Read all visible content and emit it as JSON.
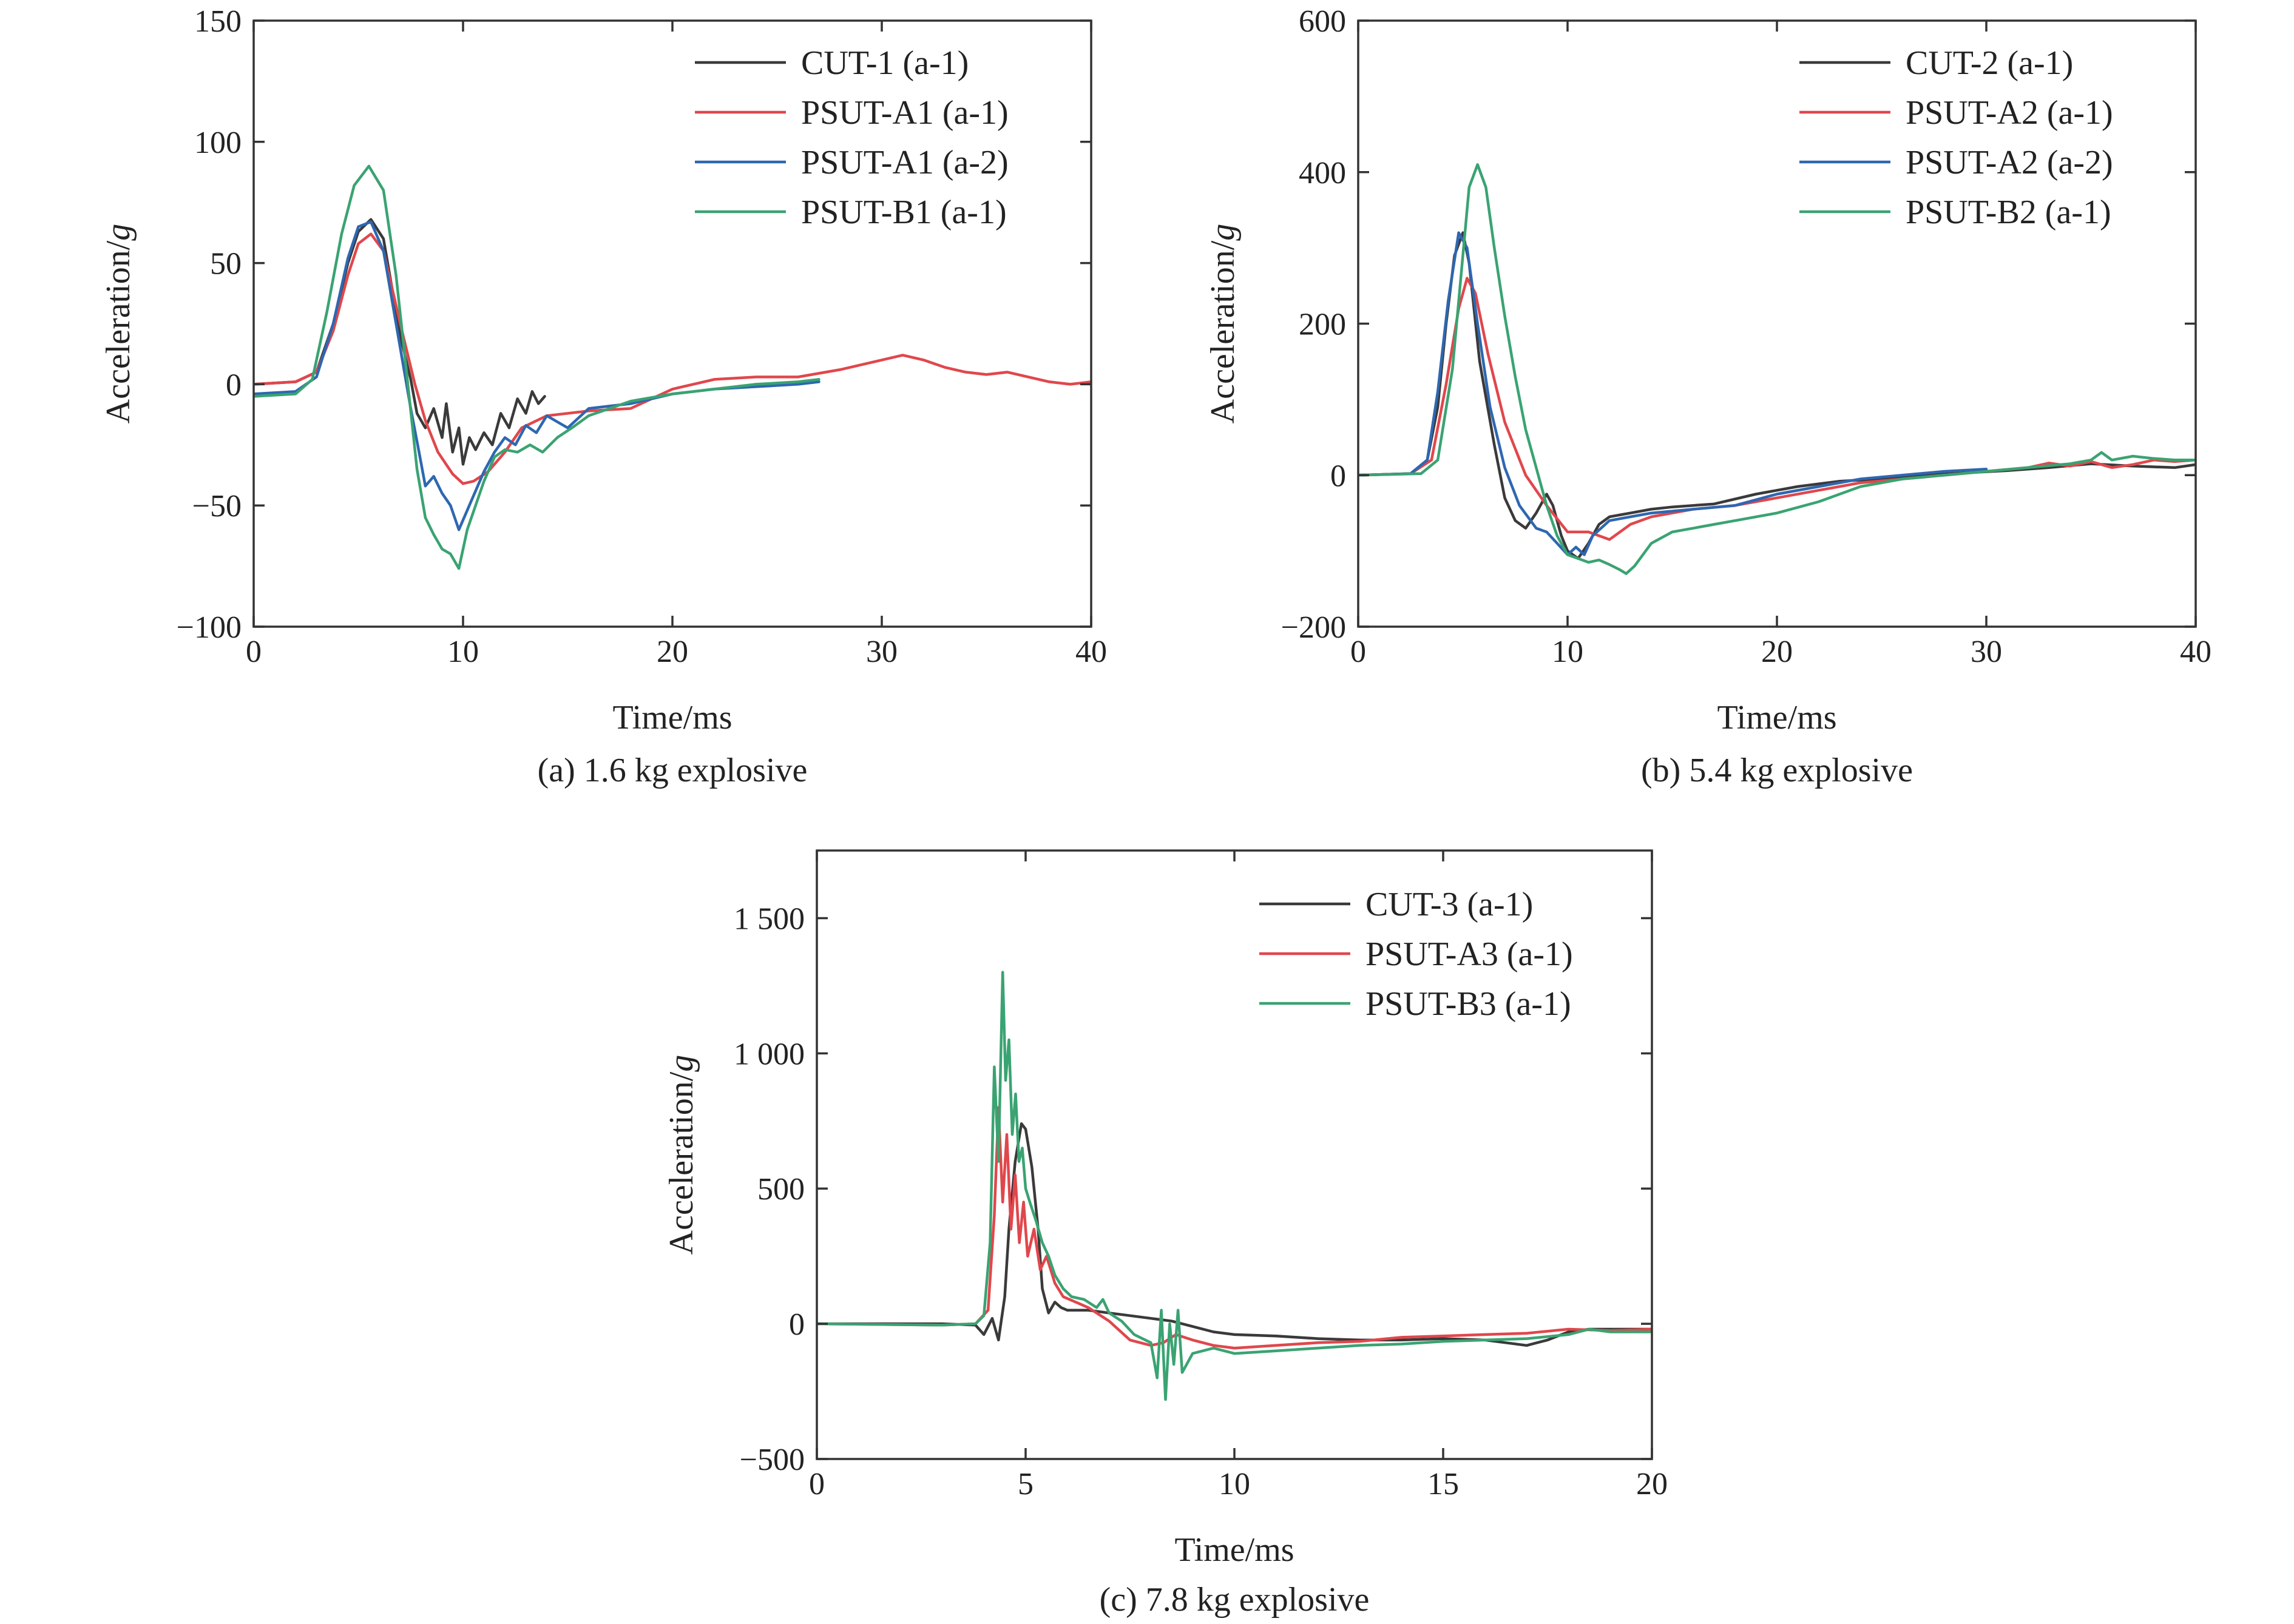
{
  "colors": {
    "cut": "#3a3a3a",
    "psut_a_1": "#e0474c",
    "psut_a_2": "#2e67b1",
    "psut_b_1": "#3aa372"
  },
  "chart_data": [
    {
      "type": "line",
      "id": "a",
      "caption": "(a) 1.6 kg explosive",
      "xlabel": "Time/ms",
      "ylabel": "Acceleration/",
      "ylabel_italic": "g",
      "xlim": [
        0,
        40
      ],
      "ylim": [
        -100,
        150
      ],
      "xticks": [
        0,
        10,
        20,
        30,
        40
      ],
      "yticks": [
        -100,
        -50,
        0,
        50,
        100,
        150
      ],
      "xtick_labels": [
        "0",
        "10",
        "20",
        "30",
        "40"
      ],
      "ytick_labels": [
        "−100",
        "−50",
        "0",
        "50",
        "100",
        "150"
      ],
      "legend_position": "top-right",
      "grid": false,
      "series": [
        {
          "name": "CUT-1 (a-1)",
          "color": "#3a3a3a",
          "x": [
            0,
            2,
            3,
            3.8,
            4.5,
            5,
            5.6,
            6.2,
            7,
            7.5,
            7.8,
            8.2,
            8.6,
            9,
            9.2,
            9.5,
            9.8,
            10,
            10.3,
            10.6,
            11,
            11.4,
            11.8,
            12.2,
            12.6,
            13,
            13.3,
            13.6,
            13.9
          ],
          "y": [
            0,
            1,
            5,
            25,
            50,
            63,
            68,
            60,
            20,
            2,
            -12,
            -18,
            -10,
            -22,
            -8,
            -28,
            -18,
            -33,
            -22,
            -27,
            -20,
            -25,
            -12,
            -18,
            -6,
            -12,
            -3,
            -8,
            -5
          ]
        },
        {
          "name": "PSUT-A1 (a-1)",
          "color": "#e0474c",
          "x": [
            0,
            2,
            3,
            3.8,
            4.5,
            5,
            5.6,
            6.2,
            7,
            7.7,
            8.2,
            8.8,
            9.5,
            10,
            10.5,
            11.2,
            12,
            12.8,
            14,
            16,
            18,
            20,
            22,
            24,
            26,
            28,
            29,
            30,
            31,
            32,
            33,
            34,
            35,
            36,
            37,
            38,
            39,
            40
          ],
          "y": [
            0,
            1,
            5,
            22,
            45,
            58,
            62,
            55,
            25,
            0,
            -15,
            -28,
            -37,
            -41,
            -40,
            -36,
            -28,
            -18,
            -13,
            -11,
            -10,
            -2,
            2,
            3,
            3,
            6,
            8,
            10,
            12,
            10,
            7,
            5,
            4,
            5,
            3,
            1,
            0,
            1
          ]
        },
        {
          "name": "PSUT-A1 (a-2)",
          "color": "#2e67b1",
          "x": [
            0,
            2,
            3,
            3.8,
            4.5,
            5,
            5.6,
            6.2,
            7,
            7.5,
            7.9,
            8.2,
            8.6,
            9,
            9.4,
            9.8,
            10.2,
            10.6,
            11,
            11.5,
            12,
            12.5,
            13,
            13.5,
            14,
            15,
            16,
            18,
            20,
            22,
            24,
            26,
            27
          ],
          "y": [
            -4,
            -3,
            3,
            25,
            52,
            65,
            67,
            55,
            15,
            -10,
            -28,
            -42,
            -38,
            -45,
            -50,
            -60,
            -52,
            -44,
            -36,
            -28,
            -22,
            -25,
            -17,
            -20,
            -13,
            -18,
            -10,
            -8,
            -4,
            -2,
            -1,
            0,
            1
          ]
        },
        {
          "name": "PSUT-B1 (a-1)",
          "color": "#3aa372",
          "x": [
            0,
            2,
            2.8,
            3.5,
            4.2,
            4.8,
            5.5,
            6.2,
            6.8,
            7.3,
            7.8,
            8.2,
            8.6,
            9,
            9.4,
            9.8,
            10.2,
            10.6,
            11,
            11.5,
            12,
            12.6,
            13.2,
            13.8,
            14.5,
            15.2,
            16,
            17,
            18,
            20,
            22,
            24,
            26,
            27
          ],
          "y": [
            -5,
            -4,
            2,
            30,
            62,
            82,
            90,
            80,
            45,
            5,
            -35,
            -55,
            -62,
            -68,
            -70,
            -76,
            -60,
            -50,
            -40,
            -30,
            -27,
            -28,
            -25,
            -28,
            -22,
            -18,
            -13,
            -10,
            -7,
            -4,
            -2,
            0,
            1,
            2
          ]
        }
      ]
    },
    {
      "type": "line",
      "id": "b",
      "caption": "(b) 5.4 kg explosive",
      "xlabel": "Time/ms",
      "ylabel": "Acceleration/",
      "ylabel_italic": "g",
      "xlim": [
        0,
        40
      ],
      "ylim": [
        -200,
        600
      ],
      "xticks": [
        0,
        10,
        20,
        30,
        40
      ],
      "yticks": [
        -200,
        0,
        200,
        400,
        600
      ],
      "xtick_labels": [
        "0",
        "10",
        "20",
        "30",
        "40"
      ],
      "ytick_labels": [
        "−200",
        "0",
        "200",
        "400",
        "600"
      ],
      "legend_position": "top-right",
      "grid": false,
      "series": [
        {
          "name": "CUT-2 (a-1)",
          "color": "#3a3a3a",
          "x": [
            0,
            2.5,
            3.3,
            3.8,
            4.2,
            4.6,
            5,
            5.3,
            5.8,
            6.5,
            7,
            7.5,
            8,
            8.5,
            9,
            9.3,
            9.7,
            10,
            10.5,
            11,
            11.5,
            12,
            13,
            14,
            15,
            17,
            19,
            21,
            23,
            25,
            27,
            29,
            31,
            33,
            35,
            37,
            39,
            40
          ],
          "y": [
            0,
            2,
            20,
            90,
            200,
            290,
            320,
            280,
            150,
            40,
            -30,
            -60,
            -70,
            -50,
            -25,
            -40,
            -80,
            -100,
            -110,
            -90,
            -65,
            -55,
            -50,
            -45,
            -42,
            -38,
            -25,
            -15,
            -8,
            -5,
            0,
            3,
            6,
            10,
            15,
            12,
            10,
            14
          ]
        },
        {
          "name": "PSUT-A2 (a-1)",
          "color": "#e0474c",
          "x": [
            0,
            2.5,
            3.5,
            4.2,
            4.8,
            5.2,
            5.6,
            6.2,
            7,
            8,
            9,
            10,
            11,
            11.5,
            12,
            12.5,
            13,
            14,
            16,
            18,
            20,
            22,
            24,
            26,
            28,
            30,
            32,
            33,
            34,
            35,
            36,
            37,
            38,
            39,
            40
          ],
          "y": [
            0,
            2,
            20,
            120,
            220,
            260,
            240,
            160,
            70,
            0,
            -40,
            -75,
            -75,
            -80,
            -85,
            -75,
            -65,
            -55,
            -45,
            -40,
            -30,
            -20,
            -10,
            -5,
            0,
            5,
            10,
            16,
            12,
            18,
            10,
            14,
            20,
            18,
            20
          ]
        },
        {
          "name": "PSUT-A2 (a-2)",
          "color": "#2e67b1",
          "x": [
            0,
            2.5,
            3.3,
            3.8,
            4.3,
            4.8,
            5.2,
            5.7,
            6.3,
            7,
            7.7,
            8.5,
            9,
            9.5,
            10,
            10.4,
            10.8,
            11.2,
            11.6,
            12,
            13,
            14,
            16,
            18,
            20,
            22,
            24,
            26,
            28,
            30
          ],
          "y": [
            0,
            2,
            20,
            110,
            230,
            320,
            300,
            200,
            90,
            10,
            -40,
            -70,
            -75,
            -90,
            -105,
            -95,
            -105,
            -80,
            -70,
            -60,
            -55,
            -50,
            -45,
            -40,
            -25,
            -15,
            -5,
            0,
            5,
            8
          ]
        },
        {
          "name": "PSUT-B2 (a-1)",
          "color": "#3aa372",
          "x": [
            0,
            3,
            3.8,
            4.5,
            5,
            5.3,
            5.7,
            6.1,
            6.5,
            7,
            7.5,
            8,
            8.5,
            9,
            9.5,
            10,
            11,
            11.5,
            12,
            12.5,
            12.8,
            13.2,
            14,
            15,
            16,
            17,
            18,
            20,
            22,
            24,
            26,
            28,
            30,
            32,
            34,
            35,
            35.5,
            36,
            37,
            38,
            39,
            40
          ],
          "y": [
            0,
            2,
            20,
            140,
            290,
            380,
            410,
            380,
            300,
            210,
            130,
            60,
            10,
            -40,
            -80,
            -105,
            -115,
            -112,
            -118,
            -125,
            -130,
            -120,
            -90,
            -75,
            -70,
            -65,
            -60,
            -50,
            -35,
            -15,
            -5,
            0,
            5,
            10,
            15,
            20,
            30,
            20,
            25,
            22,
            20,
            20
          ]
        }
      ]
    },
    {
      "type": "line",
      "id": "c",
      "caption": "(c) 7.8 kg explosive",
      "xlabel": "Time/ms",
      "ylabel": "Acceleration/",
      "ylabel_italic": "g",
      "xlim": [
        0,
        20
      ],
      "ylim": [
        -500,
        1750
      ],
      "xticks": [
        0,
        5,
        10,
        15,
        20
      ],
      "yticks": [
        -500,
        0,
        500,
        1000,
        1500
      ],
      "xtick_labels": [
        "0",
        "5",
        "10",
        "15",
        "20"
      ],
      "ytick_labels": [
        "−500",
        "0",
        "500",
        "1 000",
        "1 500"
      ],
      "legend_position": "top-right",
      "grid": false,
      "series": [
        {
          "name": "CUT-3 (a-1)",
          "color": "#3a3a3a",
          "x": [
            0,
            3,
            3.8,
            4,
            4.2,
            4.35,
            4.5,
            4.6,
            4.75,
            4.9,
            5,
            5.15,
            5.3,
            5.4,
            5.55,
            5.7,
            5.85,
            6,
            6.5,
            7,
            7.5,
            8,
            8.5,
            9,
            9.5,
            10,
            11,
            12,
            13,
            14,
            15,
            16,
            16.5,
            17,
            17.5,
            18,
            18.5,
            19,
            20
          ],
          "y": [
            0,
            0,
            -5,
            -40,
            20,
            -60,
            100,
            350,
            600,
            740,
            720,
            580,
            350,
            130,
            40,
            80,
            60,
            50,
            50,
            40,
            30,
            20,
            10,
            -10,
            -30,
            -40,
            -45,
            -55,
            -60,
            -60,
            -55,
            -60,
            -70,
            -80,
            -60,
            -30,
            -20,
            -20,
            -20
          ]
        },
        {
          "name": "PSUT-A3 (a-1)",
          "color": "#e0474c",
          "x": [
            0,
            3,
            3.8,
            4.1,
            4.25,
            4.35,
            4.45,
            4.55,
            4.65,
            4.75,
            4.85,
            4.95,
            5.05,
            5.2,
            5.35,
            5.5,
            5.7,
            5.9,
            6.2,
            6.5,
            7,
            7.5,
            8,
            8.3,
            8.6,
            9,
            9.5,
            10,
            11,
            12,
            13,
            14,
            15,
            16,
            17,
            18,
            19,
            20
          ],
          "y": [
            0,
            -5,
            0,
            50,
            400,
            800,
            450,
            700,
            350,
            550,
            300,
            450,
            250,
            350,
            200,
            250,
            150,
            100,
            80,
            60,
            10,
            -60,
            -80,
            -70,
            -40,
            -60,
            -80,
            -90,
            -80,
            -70,
            -65,
            -50,
            -45,
            -40,
            -35,
            -20,
            -25,
            -20
          ]
        },
        {
          "name": "PSUT-B3 (a-1)",
          "color": "#3aa372",
          "x": [
            0,
            3,
            3.8,
            4,
            4.15,
            4.25,
            4.35,
            4.45,
            4.52,
            4.6,
            4.68,
            4.76,
            4.84,
            4.92,
            5,
            5.1,
            5.25,
            5.4,
            5.55,
            5.7,
            5.9,
            6.1,
            6.4,
            6.7,
            6.85,
            7,
            7.3,
            7.6,
            8,
            8.15,
            8.25,
            8.35,
            8.45,
            8.55,
            8.65,
            8.75,
            9,
            9.5,
            10,
            11,
            12,
            13,
            14,
            15,
            16,
            17,
            18,
            18.5,
            19,
            20
          ],
          "y": [
            0,
            -5,
            0,
            30,
            300,
            950,
            600,
            1300,
            900,
            1050,
            700,
            850,
            600,
            650,
            500,
            450,
            380,
            300,
            250,
            180,
            130,
            100,
            90,
            60,
            90,
            40,
            10,
            -40,
            -70,
            -200,
            50,
            -280,
            0,
            -150,
            50,
            -180,
            -110,
            -90,
            -110,
            -100,
            -90,
            -80,
            -75,
            -65,
            -60,
            -55,
            -40,
            -20,
            -30,
            -30
          ]
        }
      ]
    }
  ]
}
